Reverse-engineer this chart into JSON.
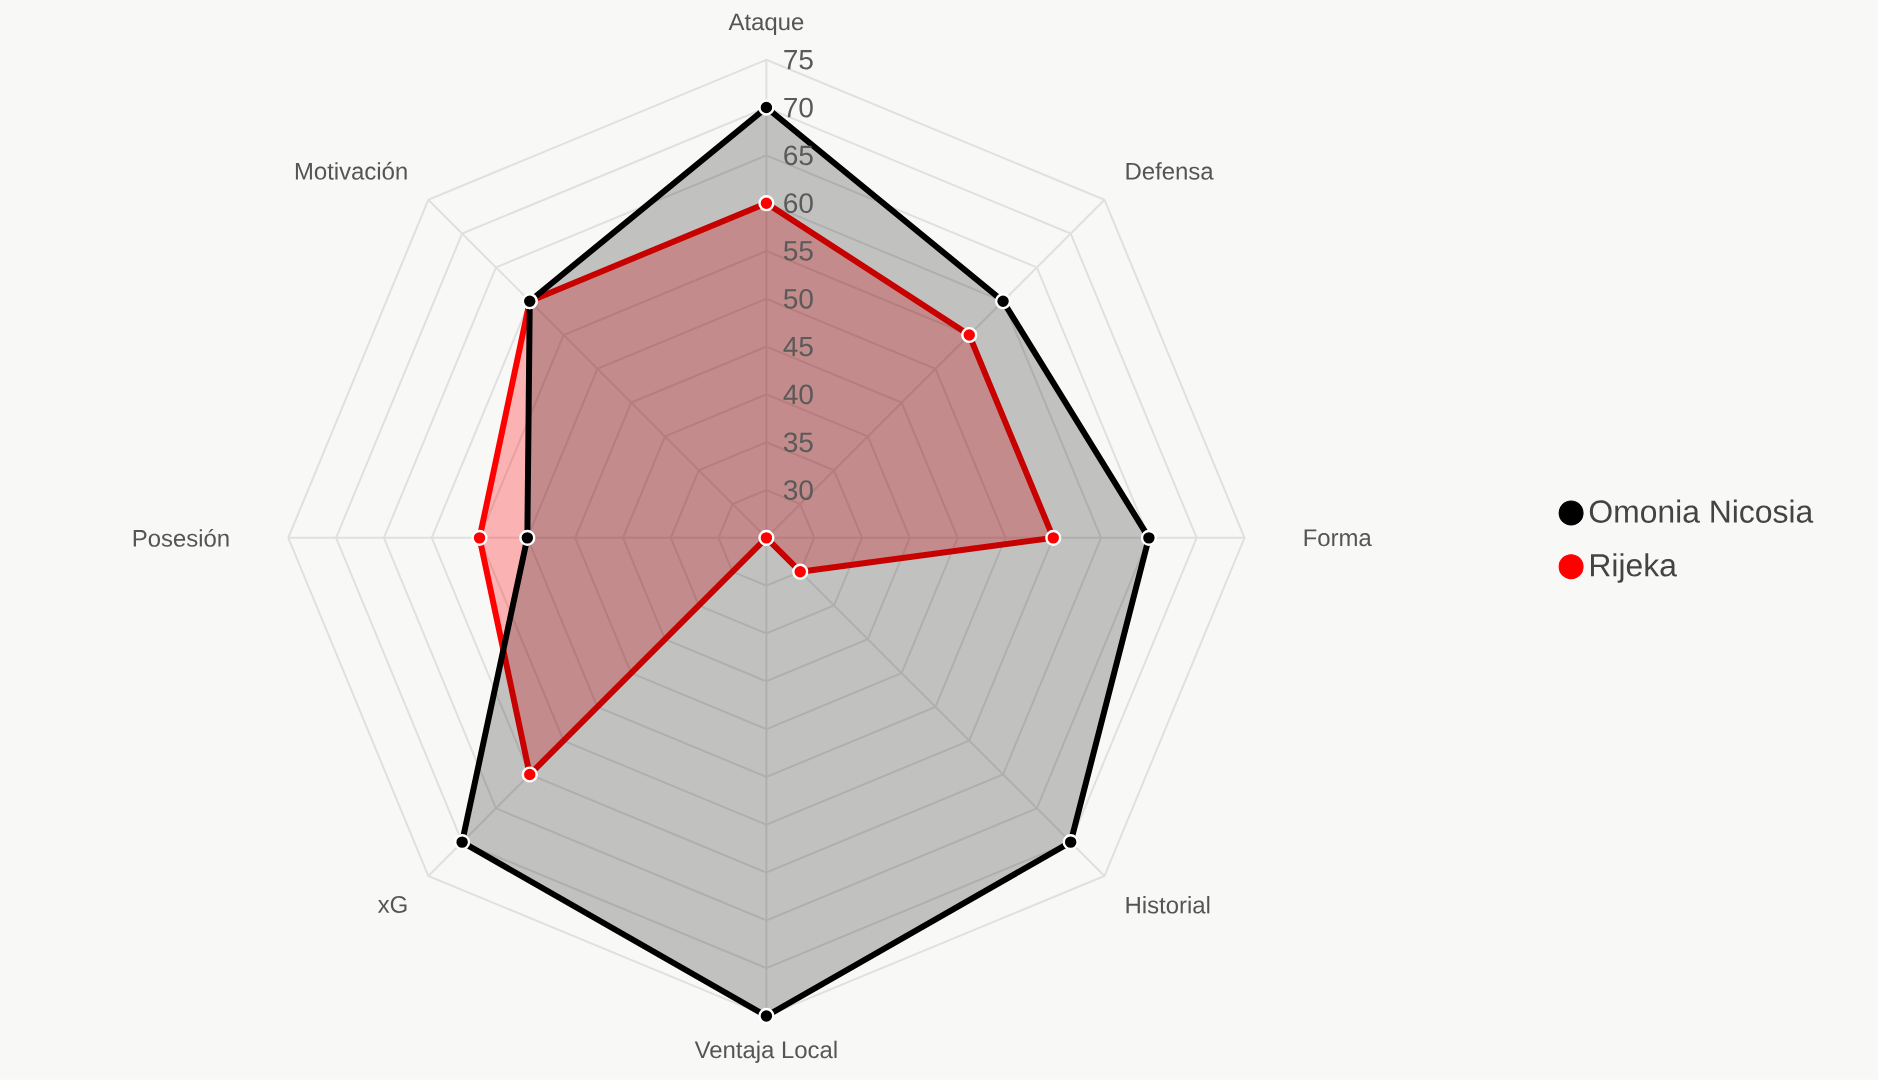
{
  "chart_data": {
    "type": "radar",
    "categories": [
      "Ataque",
      "Defensa",
      "Forma",
      "Historial",
      "Ventaja Local",
      "xG",
      "Posesión",
      "Motivación"
    ],
    "series": [
      {
        "name": "Omonia Nicosia",
        "color": "#000000",
        "values": [
          70,
          60,
          65,
          70,
          75,
          70,
          50,
          60
        ]
      },
      {
        "name": "Rijeka",
        "color": "#ff0000",
        "values": [
          60,
          55,
          55,
          30,
          25,
          60,
          55,
          60
        ]
      }
    ],
    "ylim": [
      25,
      75
    ],
    "yticks": [
      30,
      35,
      40,
      45,
      50,
      55,
      60,
      65,
      70,
      75
    ],
    "grid": true,
    "legend": "right",
    "marker": "circle"
  }
}
